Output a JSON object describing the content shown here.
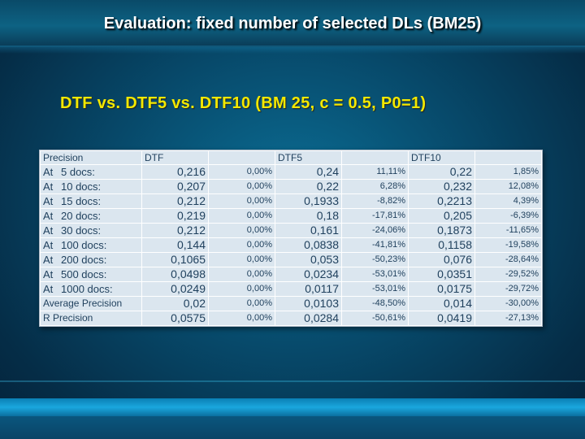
{
  "slide": {
    "title": "Evaluation: fixed number of selected DLs (BM25)",
    "subtitle": "DTF vs. DTF5 vs. DTF10 (BM 25, c = 0.5, P0=1)"
  },
  "table": {
    "headers": [
      "Precision",
      "DTF",
      "",
      "DTF5",
      "",
      "DTF10",
      ""
    ],
    "rows": [
      {
        "at": "At",
        "label": "5 docs:",
        "dtf": "0,216",
        "dtf_pct": "0,00%",
        "dtf5": "0,24",
        "dtf5_pct": "11,11%",
        "dtf10": "0,22",
        "dtf10_pct": "1,85%"
      },
      {
        "at": "At",
        "label": "10 docs:",
        "dtf": "0,207",
        "dtf_pct": "0,00%",
        "dtf5": "0,22",
        "dtf5_pct": "6,28%",
        "dtf10": "0,232",
        "dtf10_pct": "12,08%"
      },
      {
        "at": "At",
        "label": "15 docs:",
        "dtf": "0,212",
        "dtf_pct": "0,00%",
        "dtf5": "0,1933",
        "dtf5_pct": "-8,82%",
        "dtf10": "0,2213",
        "dtf10_pct": "4,39%"
      },
      {
        "at": "At",
        "label": "20 docs:",
        "dtf": "0,219",
        "dtf_pct": "0,00%",
        "dtf5": "0,18",
        "dtf5_pct": "-17,81%",
        "dtf10": "0,205",
        "dtf10_pct": "-6,39%"
      },
      {
        "at": "At",
        "label": "30 docs:",
        "dtf": "0,212",
        "dtf_pct": "0,00%",
        "dtf5": "0,161",
        "dtf5_pct": "-24,06%",
        "dtf10": "0,1873",
        "dtf10_pct": "-11,65%"
      },
      {
        "at": "At",
        "label": "100 docs:",
        "dtf": "0,144",
        "dtf_pct": "0,00%",
        "dtf5": "0,0838",
        "dtf5_pct": "-41,81%",
        "dtf10": "0,1158",
        "dtf10_pct": "-19,58%"
      },
      {
        "at": "At",
        "label": "200 docs:",
        "dtf": "0,1065",
        "dtf_pct": "0,00%",
        "dtf5": "0,053",
        "dtf5_pct": "-50,23%",
        "dtf10": "0,076",
        "dtf10_pct": "-28,64%"
      },
      {
        "at": "At",
        "label": "500 docs:",
        "dtf": "0,0498",
        "dtf_pct": "0,00%",
        "dtf5": "0,0234",
        "dtf5_pct": "-53,01%",
        "dtf10": "0,0351",
        "dtf10_pct": "-29,52%"
      },
      {
        "at": "At",
        "label": "1000 docs:",
        "dtf": "0,0249",
        "dtf_pct": "0,00%",
        "dtf5": "0,0117",
        "dtf5_pct": "-53,01%",
        "dtf10": "0,0175",
        "dtf10_pct": "-29,72%"
      },
      {
        "at": "",
        "label": "Average Precision",
        "dtf": "0,02",
        "dtf_pct": "0,00%",
        "dtf5": "0,0103",
        "dtf5_pct": "-48,50%",
        "dtf10": "0,014",
        "dtf10_pct": "-30,00%"
      },
      {
        "at": "",
        "label": "R Precision",
        "dtf": "0,0575",
        "dtf_pct": "0,00%",
        "dtf5": "0,0284",
        "dtf5_pct": "-50,61%",
        "dtf10": "0,0419",
        "dtf10_pct": "-27,13%"
      }
    ]
  }
}
